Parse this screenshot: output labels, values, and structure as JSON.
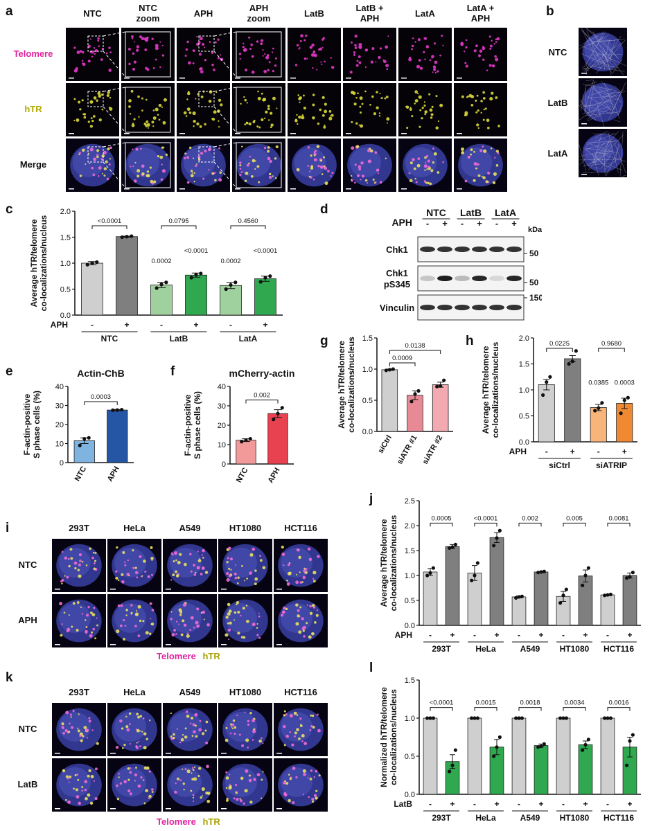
{
  "panel_letters": {
    "a": "a",
    "b": "b",
    "c": "c",
    "d": "d",
    "e": "e",
    "f": "f",
    "g": "g",
    "h": "h",
    "i": "i",
    "j": "j",
    "k": "k",
    "l": "l"
  },
  "panel_a": {
    "columns": [
      "NTC",
      "NTC\nzoom",
      "APH",
      "APH\nzoom",
      "LatB",
      "LatB +\nAPH",
      "LatA",
      "LatA +\nAPH"
    ],
    "rows": [
      "Telomere",
      "hTR",
      "Merge"
    ],
    "row_colors": [
      "#e0219e",
      "#b0a800",
      "#111111"
    ]
  },
  "panel_b": {
    "rows": [
      "NTC",
      "LatB",
      "LatA"
    ]
  },
  "panel_i": {
    "columns": [
      "293T",
      "HeLa",
      "A549",
      "HT1080",
      "HCT116"
    ],
    "rows": [
      "NTC",
      "APH"
    ],
    "legend": [
      "Telomere",
      "hTR"
    ]
  },
  "panel_k": {
    "columns": [
      "293T",
      "HeLa",
      "A549",
      "HT1080",
      "HCT116"
    ],
    "rows": [
      "NTC",
      "LatB"
    ],
    "legend": [
      "Telomere",
      "hTR"
    ]
  },
  "panel_d": {
    "header_groups": [
      "NTC",
      "LatB",
      "LatA"
    ],
    "treat_label": "APH",
    "signs": [
      "-",
      "+",
      "-",
      "+",
      "-",
      "+"
    ],
    "kda_label": "kDa",
    "blots": [
      {
        "name": "Chk1",
        "marker": "50",
        "intensities": [
          0.85,
          0.85,
          0.85,
          0.85,
          0.85,
          0.85
        ]
      },
      {
        "name": "Chk1\npS345",
        "marker": "50",
        "intensities": [
          0.2,
          0.95,
          0.25,
          0.9,
          0.12,
          0.9
        ]
      },
      {
        "name": "Vinculin",
        "marker": "150",
        "intensities": [
          0.85,
          0.85,
          0.85,
          0.85,
          0.85,
          0.85
        ]
      }
    ]
  },
  "chart_data": [
    {
      "panel": "c",
      "type": "bar",
      "ylabel": "Average hTR/telomere\nco-localizations/nucleus",
      "ylim": [
        0,
        2.0
      ],
      "yticks": [
        0,
        0.5,
        1.0,
        1.5,
        2.0
      ],
      "treat_label": "APH",
      "signs": [
        "-",
        "+",
        "-",
        "+",
        "-",
        "+"
      ],
      "groups": [
        {
          "name": "NTC",
          "span": [
            0,
            1
          ]
        },
        {
          "name": "LatB",
          "span": [
            2,
            3
          ]
        },
        {
          "name": "LatA",
          "span": [
            4,
            5
          ]
        }
      ],
      "values": [
        1.0,
        1.51,
        0.58,
        0.77,
        0.57,
        0.7
      ],
      "errors": [
        0.03,
        0.01,
        0.05,
        0.04,
        0.06,
        0.05
      ],
      "points": [
        [
          0.97,
          1.0,
          1.02
        ],
        [
          1.5,
          1.51,
          1.52
        ],
        [
          0.52,
          0.59,
          0.63
        ],
        [
          0.72,
          0.78,
          0.8
        ],
        [
          0.5,
          0.58,
          0.63
        ],
        [
          0.64,
          0.72,
          0.75
        ]
      ],
      "colors": [
        "#cfcfcf",
        "#7f7f7f",
        "#9fd19f",
        "#2fa84f",
        "#9fd19f",
        "#2fa84f"
      ],
      "brackets": [
        {
          "from": 0,
          "to": 1,
          "label": "<0.0001",
          "y": 1.72
        },
        {
          "from": 2,
          "to": 3,
          "label": "0.0795",
          "y": 1.72
        },
        {
          "from": 4,
          "to": 5,
          "label": "0.4560",
          "y": 1.72
        }
      ],
      "above": [
        {
          "bar": 2,
          "label": "0.0002",
          "y": 1.0
        },
        {
          "bar": 3,
          "label": "<0.0001",
          "y": 1.2
        },
        {
          "bar": 4,
          "label": "0.0002",
          "y": 1.0
        },
        {
          "bar": 5,
          "label": "<0.0001",
          "y": 1.2
        }
      ]
    },
    {
      "panel": "e",
      "type": "bar",
      "title": "Actin-ChB",
      "ylabel": "F-actin-positive\nS phase cells (%)",
      "ylim": [
        0,
        40
      ],
      "yticks": [
        0,
        10,
        20,
        30,
        40
      ],
      "categories": [
        "NTC",
        "APH"
      ],
      "values": [
        11.5,
        27.6
      ],
      "errors": [
        1.5,
        0.3
      ],
      "points": [
        [
          9,
          12.5,
          13
        ],
        [
          27.5,
          27.6,
          27.8
        ]
      ],
      "colors": [
        "#7fb3e0",
        "#2555a5"
      ],
      "brackets": [
        {
          "from": 0,
          "to": 1,
          "label": "0.0003",
          "y": 32
        }
      ]
    },
    {
      "panel": "f",
      "type": "bar",
      "title": "mCherry-actin",
      "ylabel": "F-actin-positive\nS phase cells (%)",
      "ylim": [
        0,
        40
      ],
      "yticks": [
        0,
        10,
        20,
        30,
        40
      ],
      "categories": [
        "NTC",
        "APH"
      ],
      "values": [
        12.3,
        26
      ],
      "errors": [
        0.7,
        2.0
      ],
      "points": [
        [
          11.5,
          12.3,
          13
        ],
        [
          23,
          26,
          29
        ]
      ],
      "colors": [
        "#f29a9a",
        "#e8414f"
      ],
      "brackets": [
        {
          "from": 0,
          "to": 1,
          "label": "0.002",
          "y": 33
        }
      ]
    },
    {
      "panel": "g",
      "type": "bar",
      "ylabel": "Average hTR/telomere\nco-localizations/nucleus",
      "ylim": [
        0,
        1.5
      ],
      "yticks": [
        0.0,
        0.5,
        1.0,
        1.5
      ],
      "categories": [
        "siCtrl",
        "siATR #1",
        "siATR #2"
      ],
      "values": [
        0.99,
        0.58,
        0.75
      ],
      "errors": [
        0.01,
        0.07,
        0.04
      ],
      "points": [
        [
          0.98,
          0.99,
          1.0
        ],
        [
          0.48,
          0.6,
          0.65
        ],
        [
          0.72,
          0.73,
          0.82
        ]
      ],
      "colors": [
        "#cfcfcf",
        "#e88a96",
        "#f2a9b0"
      ],
      "brackets": [
        {
          "from": 0,
          "to": 1,
          "label": "0.0009",
          "y": 1.1
        },
        {
          "from": 0,
          "to": 2,
          "label": "0.0138",
          "y": 1.3
        }
      ]
    },
    {
      "panel": "h",
      "type": "bar",
      "ylabel": "Average hTR/telomere\nco-localizations/nucleus",
      "ylim": [
        0,
        2.0
      ],
      "yticks": [
        0.0,
        0.5,
        1.0,
        1.5,
        2.0
      ],
      "treat_label": "APH",
      "signs": [
        "-",
        "+",
        "-",
        "+"
      ],
      "groups": [
        {
          "name": "siCtrl",
          "span": [
            0,
            1
          ]
        },
        {
          "name": "siATRIP",
          "span": [
            2,
            3
          ]
        }
      ],
      "values": [
        1.1,
        1.6,
        0.66,
        0.74
      ],
      "errors": [
        0.1,
        0.06,
        0.06,
        0.1
      ],
      "points": [
        [
          0.9,
          1.15,
          1.25
        ],
        [
          1.5,
          1.55,
          1.75
        ],
        [
          0.6,
          0.65,
          0.75
        ],
        [
          0.55,
          0.8,
          0.85
        ]
      ],
      "colors": [
        "#cfcfcf",
        "#7f7f7f",
        "#f7b57a",
        "#f08a32"
      ],
      "brackets": [
        {
          "from": 0,
          "to": 1,
          "label": "0.0225",
          "y": 1.8
        },
        {
          "from": 2,
          "to": 3,
          "label": "0.9680",
          "y": 1.8
        }
      ],
      "above": [
        {
          "bar": 2,
          "label": "0.0385",
          "y": 1.1
        },
        {
          "bar": 3,
          "label": "0.0003",
          "y": 1.1
        }
      ]
    },
    {
      "panel": "j",
      "type": "bar",
      "ylabel": "Average hTR/telomere\nco-localizations/nucleus",
      "ylim": [
        0,
        2.5
      ],
      "yticks": [
        0.0,
        0.5,
        1.0,
        1.5,
        2.0,
        2.5
      ],
      "treat_label": "APH",
      "signs": [
        "-",
        "+",
        "-",
        "+",
        "-",
        "+",
        "-",
        "+",
        "-",
        "+"
      ],
      "groups": [
        {
          "name": "293T",
          "span": [
            0,
            1
          ]
        },
        {
          "name": "HeLa",
          "span": [
            2,
            3
          ]
        },
        {
          "name": "A549",
          "span": [
            4,
            5
          ]
        },
        {
          "name": "HT1080",
          "span": [
            6,
            7
          ]
        },
        {
          "name": "HCT116",
          "span": [
            8,
            9
          ]
        }
      ],
      "values": [
        1.07,
        1.58,
        1.05,
        1.76,
        0.57,
        1.07,
        0.58,
        0.99,
        0.61,
        1.0
      ],
      "errors": [
        0.07,
        0.04,
        0.15,
        0.1,
        0.02,
        0.01,
        0.1,
        0.12,
        0.01,
        0.05
      ],
      "points": [
        [
          1.0,
          1.05,
          1.15
        ],
        [
          1.55,
          1.57,
          1.62
        ],
        [
          0.9,
          1.0,
          1.25
        ],
        [
          1.6,
          1.75,
          1.9
        ],
        [
          0.55,
          0.57,
          0.58
        ],
        [
          1.06,
          1.07,
          1.08
        ],
        [
          0.45,
          0.6,
          0.72
        ],
        [
          0.8,
          1.0,
          1.15
        ],
        [
          0.6,
          0.61,
          0.62
        ],
        [
          0.95,
          0.97,
          1.06
        ]
      ],
      "colors": [
        "#cfcfcf",
        "#7f7f7f",
        "#cfcfcf",
        "#7f7f7f",
        "#cfcfcf",
        "#7f7f7f",
        "#cfcfcf",
        "#7f7f7f",
        "#cfcfcf",
        "#7f7f7f"
      ],
      "brackets": [
        {
          "from": 0,
          "to": 1,
          "label": "0.0005",
          "y": 2.05
        },
        {
          "from": 2,
          "to": 3,
          "label": "<0.0001",
          "y": 2.05
        },
        {
          "from": 4,
          "to": 5,
          "label": "0.002",
          "y": 2.05
        },
        {
          "from": 6,
          "to": 7,
          "label": "0.005",
          "y": 2.05
        },
        {
          "from": 8,
          "to": 9,
          "label": "0.0081",
          "y": 2.05
        }
      ]
    },
    {
      "panel": "l",
      "type": "bar",
      "ylabel": "Normalized hTR/telomere\nco-localizations/nucleus",
      "ylim": [
        0,
        1.5
      ],
      "yticks": [
        0.0,
        0.5,
        1.0,
        1.5
      ],
      "treat_label": "LatB",
      "signs": [
        "-",
        "+",
        "-",
        "+",
        "-",
        "+",
        "-",
        "+",
        "-",
        "+"
      ],
      "groups": [
        {
          "name": "293T",
          "span": [
            0,
            1
          ]
        },
        {
          "name": "HeLa",
          "span": [
            2,
            3
          ]
        },
        {
          "name": "A549",
          "span": [
            4,
            5
          ]
        },
        {
          "name": "HT1080",
          "span": [
            6,
            7
          ]
        },
        {
          "name": "HCT116",
          "span": [
            8,
            9
          ]
        }
      ],
      "values": [
        1.0,
        0.43,
        1.0,
        0.62,
        1.0,
        0.64,
        1.0,
        0.65,
        1.0,
        0.62
      ],
      "errors": [
        0,
        0.09,
        0,
        0.1,
        0,
        0.02,
        0,
        0.05,
        0,
        0.13
      ],
      "points": [
        [
          1,
          1,
          1
        ],
        [
          0.3,
          0.38,
          0.58
        ],
        [
          1,
          1,
          1
        ],
        [
          0.5,
          0.62,
          0.75
        ],
        [
          1,
          1,
          1
        ],
        [
          0.62,
          0.63,
          0.66
        ],
        [
          1,
          1,
          1
        ],
        [
          0.58,
          0.65,
          0.72
        ],
        [
          1,
          1,
          1
        ],
        [
          0.38,
          0.7,
          0.78
        ]
      ],
      "colors": [
        "#cfcfcf",
        "#2fa84f",
        "#cfcfcf",
        "#2fa84f",
        "#cfcfcf",
        "#2fa84f",
        "#cfcfcf",
        "#2fa84f",
        "#cfcfcf",
        "#2fa84f"
      ],
      "brackets": [
        {
          "from": 0,
          "to": 1,
          "label": "<0.0001",
          "y": 1.14
        },
        {
          "from": 2,
          "to": 3,
          "label": "0.0015",
          "y": 1.14
        },
        {
          "from": 4,
          "to": 5,
          "label": "0.0018",
          "y": 1.14
        },
        {
          "from": 6,
          "to": 7,
          "label": "0.0034",
          "y": 1.14
        },
        {
          "from": 8,
          "to": 9,
          "label": "0.0016",
          "y": 1.14
        }
      ]
    }
  ]
}
